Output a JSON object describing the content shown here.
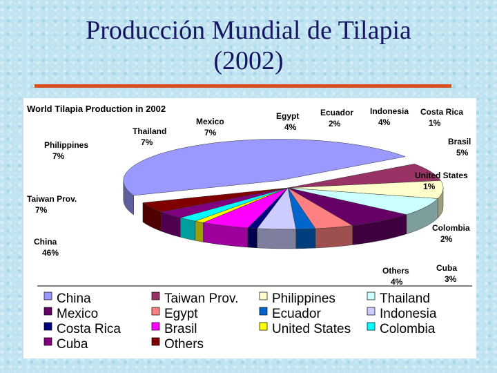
{
  "slide": {
    "title_line1": "Producción Mundial de Tilapia",
    "title_line2": "(2002)"
  },
  "chart_data": {
    "type": "pie",
    "title": "World Tilapia Production in 2002",
    "slices": [
      {
        "name": "China",
        "label": "China",
        "value": 46,
        "value_label": "46%",
        "color": "#9999ff"
      },
      {
        "name": "Taiwan Prov.",
        "label": "Taiwan Prov.",
        "value": 7,
        "value_label": "7%",
        "color": "#993366"
      },
      {
        "name": "Philippines",
        "label": "Philippines",
        "value": 7,
        "value_label": "7%",
        "color": "#ffffcc"
      },
      {
        "name": "Thailand",
        "label": "Thailand",
        "value": 7,
        "value_label": "7%",
        "color": "#ccffff"
      },
      {
        "name": "Mexico",
        "label": "Mexico",
        "value": 7,
        "value_label": "7%",
        "color": "#660066"
      },
      {
        "name": "Egypt",
        "label": "Egypt",
        "value": 4,
        "value_label": "4%",
        "color": "#ff8080"
      },
      {
        "name": "Ecuador",
        "label": "Ecuador",
        "value": 2,
        "value_label": "2%",
        "color": "#0066cc"
      },
      {
        "name": "Indonesia",
        "label": "Indonesia",
        "value": 4,
        "value_label": "4%",
        "color": "#ccccff"
      },
      {
        "name": "Costa Rica",
        "label": "Costa Rica",
        "value": 1,
        "value_label": "1%",
        "color": "#000080"
      },
      {
        "name": "Brasil",
        "label": "Brasil",
        "value": 5,
        "value_label": "5%",
        "color": "#ff00ff"
      },
      {
        "name": "United States",
        "label": "United States",
        "value": 1,
        "value_label": "1%",
        "color": "#ffff00"
      },
      {
        "name": "Colombia",
        "label": "Colombia",
        "value": 2,
        "value_label": "2%",
        "color": "#00ffff"
      },
      {
        "name": "Cuba",
        "label": "Cuba",
        "value": 3,
        "value_label": "3%",
        "color": "#800080"
      },
      {
        "name": "Others",
        "label": "Others",
        "value": 4,
        "value_label": "4%",
        "color": "#800000"
      }
    ],
    "legend": {
      "placement": "bottom",
      "rows": [
        [
          "China",
          "Taiwan Prov.",
          "Philippines",
          "Thailand"
        ],
        [
          "Mexico",
          "Egypt",
          "Ecuador",
          "Indonesia"
        ],
        [
          "Costa Rica",
          "Brasil",
          "United States",
          "Colombia"
        ],
        [
          "Cuba",
          "Others"
        ]
      ]
    },
    "style": "3d-pie"
  }
}
